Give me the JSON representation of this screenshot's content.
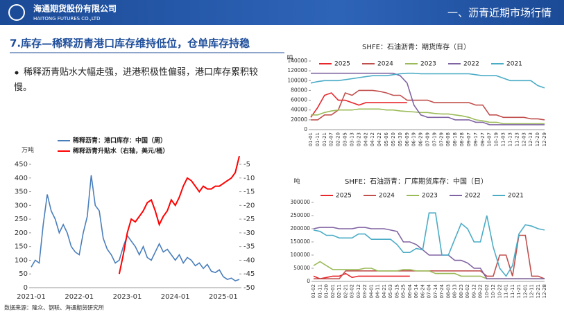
{
  "header": {
    "company": "海通期货股份有限公司",
    "company_en": "HAITONG FUTURES CO.,LTD",
    "section": "一、沥青近期市场行情"
  },
  "slide_title": "7.库存—稀释沥青港口库存维持低位，仓单库存持稳",
  "bullet": "稀释沥青贴水大幅走强，进港积极性偏弱，港口库存累积较慢。",
  "source": "数据来源：隆众、钢联、海通期货研究所",
  "chart_data": [
    {
      "type": "line",
      "y_label": "万吨",
      "legend": "top-left",
      "categories": [
        "2021-01",
        null,
        null,
        null,
        null,
        null,
        null,
        null,
        null,
        null,
        null,
        null,
        "2022-01",
        null,
        null,
        null,
        null,
        null,
        null,
        null,
        null,
        null,
        null,
        null,
        "2023-01",
        null,
        null,
        null,
        null,
        null,
        null,
        null,
        null,
        null,
        null,
        null,
        "2024-01",
        null,
        null,
        null,
        null,
        null,
        null,
        null,
        null,
        null,
        null,
        null,
        "2025-01",
        null,
        null,
        null,
        null
      ],
      "ylim": [
        0,
        450
      ],
      "yticks": [
        0,
        50,
        100,
        150,
        200,
        250,
        300,
        350,
        400,
        450
      ],
      "y2lim": [
        -50,
        -5
      ],
      "y2ticks": [
        -50,
        -45,
        -40,
        -35,
        -30,
        -25,
        -20,
        -15,
        -10,
        -5
      ],
      "series": [
        {
          "name": "稀释沥青：港口库存：中国（周）",
          "color": "#4a7ebb",
          "values": [
            75,
            100,
            90,
            230,
            340,
            280,
            250,
            200,
            230,
            200,
            150,
            130,
            120,
            200,
            260,
            410,
            300,
            280,
            180,
            140,
            120,
            90,
            100,
            150,
            190,
            170,
            150,
            120,
            150,
            110,
            100,
            130,
            160,
            130,
            140,
            120,
            100,
            120,
            90,
            110,
            100,
            80,
            90,
            70,
            85,
            60,
            55,
            65,
            40,
            30,
            35,
            25,
            30
          ]
        },
        {
          "name": "稀释沥青升贴水（右轴，美元/桶）",
          "color": "#ff0000",
          "axis": "y2",
          "values": [
            null,
            null,
            null,
            null,
            null,
            null,
            null,
            null,
            null,
            null,
            null,
            null,
            null,
            null,
            null,
            null,
            null,
            null,
            null,
            null,
            null,
            null,
            -45,
            -38,
            -30,
            -25,
            -26,
            -24,
            -22,
            -19,
            -18,
            -22,
            -27,
            -24,
            -22,
            -18,
            -20,
            -17,
            -13,
            -10,
            -11,
            -13,
            -15,
            -13,
            -14,
            -14,
            -13,
            -13,
            -12,
            -11,
            -10,
            -8,
            -2
          ]
        }
      ]
    },
    {
      "type": "line",
      "title": "SHFE：石油沥青：期货库存（日）",
      "y_label": "吨",
      "legend": "top",
      "categories": [
        "01-01",
        "01-11",
        "01-21",
        "02-07",
        "02-20",
        "03-05",
        "03-13",
        "03-23",
        "04-02",
        "04-12",
        "04-22",
        "05-06",
        "05-20",
        "05-30",
        "06-09",
        "06-19",
        "06-29",
        "07-09",
        "07-19",
        "07-29",
        "08-08",
        "08-18",
        "08-28",
        "09-07",
        "09-17",
        "09-27",
        "10-07",
        "10-19",
        "11-03",
        "11-13",
        "11-23",
        "12-03",
        "12-13",
        "12-20",
        "12-29"
      ],
      "ylim": [
        0,
        140000
      ],
      "yticks": [
        0,
        20000,
        40000,
        60000,
        80000,
        100000,
        120000,
        140000
      ],
      "series": [
        {
          "name": "2025",
          "color": "#e8262b",
          "values": [
            25000,
            45000,
            70000,
            75000,
            60000,
            60000,
            55000,
            50000,
            55000,
            55000,
            55000,
            55000,
            55000,
            55000,
            55000,
            null,
            null,
            null,
            null,
            null,
            null,
            null,
            null,
            null,
            null,
            null,
            null,
            null,
            null,
            null,
            null,
            null,
            null,
            null,
            null
          ]
        },
        {
          "name": "2024",
          "color": "#c0504d",
          "values": [
            20000,
            20000,
            30000,
            30000,
            40000,
            75000,
            70000,
            80000,
            80000,
            80000,
            78000,
            75000,
            70000,
            70000,
            60000,
            60000,
            60000,
            60000,
            55000,
            55000,
            55000,
            55000,
            55000,
            55000,
            50000,
            50000,
            30000,
            30000,
            25000,
            25000,
            25000,
            25000,
            22000,
            22000,
            20000
          ]
        },
        {
          "name": "2023",
          "color": "#9bbb59",
          "values": [
            30000,
            30000,
            35000,
            38000,
            40000,
            40000,
            40000,
            42000,
            42000,
            42000,
            42000,
            40000,
            40000,
            38000,
            37000,
            36000,
            35000,
            35000,
            33000,
            32000,
            32000,
            30000,
            28000,
            25000,
            20000,
            18000,
            15000,
            15000,
            12000,
            12000,
            12000,
            12000,
            12000,
            12000,
            12000
          ]
        },
        {
          "name": "2022",
          "color": "#8064a2",
          "values": [
            115000,
            115000,
            115000,
            115000,
            115000,
            115000,
            115000,
            115000,
            115000,
            115000,
            115000,
            115000,
            115000,
            110000,
            95000,
            50000,
            30000,
            25000,
            25000,
            25000,
            25000,
            20000,
            20000,
            20000,
            15000,
            15000,
            10000,
            10000,
            10000,
            10000,
            10000,
            10000,
            10000,
            10000,
            10000
          ]
        },
        {
          "name": "2021",
          "color": "#4bacc6",
          "values": [
            95000,
            98000,
            100000,
            100000,
            100000,
            102000,
            104000,
            106000,
            108000,
            110000,
            110000,
            110000,
            112000,
            114000,
            115000,
            115000,
            114000,
            114000,
            114000,
            114000,
            114000,
            114000,
            114000,
            114000,
            112000,
            110000,
            110000,
            110000,
            105000,
            100000,
            100000,
            100000,
            100000,
            90000,
            85000
          ]
        }
      ]
    },
    {
      "type": "line",
      "title": "SHFE：石油沥青：厂库期货库存：中国（日）",
      "y_label": "吨",
      "legend": "top",
      "categories": [
        "01-02",
        "01-11",
        "01-20",
        "02-01",
        "02-11",
        "02-21",
        "03-02",
        "03-12",
        "03-22",
        "04-01",
        "04-11",
        "04-21",
        "05-03",
        "05-15",
        "05-25",
        "06-04",
        "06-14",
        "06-24",
        "07-04",
        "07-14",
        "07-24",
        "08-03",
        "08-13",
        "08-23",
        "09-02",
        "09-12",
        "09-22",
        "10-02",
        "10-12",
        "10-22",
        "11-01",
        "11-11",
        "11-21",
        "12-01",
        "12-11",
        "12-21",
        "12-28"
      ],
      "ylim": [
        0,
        300000
      ],
      "yticks": [
        0,
        50000,
        100000,
        150000,
        200000,
        250000,
        300000
      ],
      "series": [
        {
          "name": "2025",
          "color": "#e8262b",
          "values": [
            20000,
            10000,
            15000,
            20000,
            20000,
            30000,
            15000,
            20000,
            20000,
            20000,
            20000,
            20000,
            20000,
            20000,
            20000,
            20000,
            null,
            null,
            null,
            null,
            null,
            null,
            null,
            null,
            null,
            null,
            null,
            null,
            null,
            null,
            null,
            null,
            null,
            null,
            null,
            null,
            null
          ]
        },
        {
          "name": "2024",
          "color": "#c0504d",
          "values": [
            10000,
            10000,
            10000,
            10000,
            10000,
            40000,
            40000,
            40000,
            40000,
            40000,
            40000,
            40000,
            40000,
            40000,
            40000,
            40000,
            40000,
            40000,
            40000,
            40000,
            40000,
            40000,
            40000,
            40000,
            40000,
            40000,
            40000,
            20000,
            20000,
            100000,
            100000,
            20000,
            175000,
            175000,
            20000,
            20000,
            10000
          ]
        },
        {
          "name": "2023",
          "color": "#9bbb59",
          "values": [
            60000,
            75000,
            60000,
            45000,
            45000,
            45000,
            45000,
            45000,
            50000,
            50000,
            40000,
            40000,
            40000,
            40000,
            45000,
            45000,
            40000,
            40000,
            40000,
            30000,
            30000,
            30000,
            30000,
            20000,
            20000,
            20000,
            20000,
            10000,
            10000,
            10000,
            10000,
            10000,
            10000,
            10000,
            10000,
            10000,
            10000
          ]
        },
        {
          "name": "2022",
          "color": "#8064a2",
          "values": [
            200000,
            205000,
            205000,
            205000,
            200000,
            200000,
            200000,
            205000,
            205000,
            200000,
            200000,
            200000,
            195000,
            190000,
            150000,
            150000,
            140000,
            120000,
            100000,
            100000,
            100000,
            100000,
            80000,
            80000,
            70000,
            50000,
            50000,
            10000,
            10000,
            10000,
            10000,
            10000,
            10000,
            10000,
            10000,
            10000,
            10000
          ]
        },
        {
          "name": "2021",
          "color": "#4bacc6",
          "values": [
            195000,
            190000,
            175000,
            175000,
            165000,
            165000,
            165000,
            180000,
            180000,
            160000,
            160000,
            160000,
            160000,
            140000,
            110000,
            110000,
            125000,
            120000,
            260000,
            260000,
            100000,
            100000,
            160000,
            220000,
            200000,
            150000,
            150000,
            250000,
            130000,
            50000,
            20000,
            60000,
            180000,
            215000,
            210000,
            200000,
            195000
          ]
        }
      ]
    }
  ]
}
